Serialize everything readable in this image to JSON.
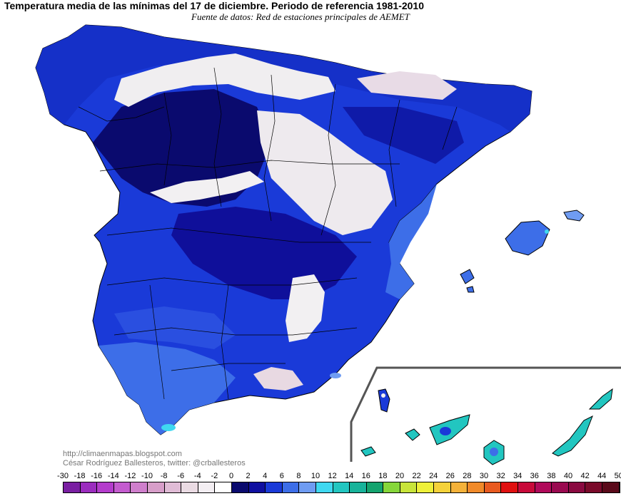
{
  "title": "Temperatura media de las mínimas del 17 de diciembre. Periodo de referencia 1981-2010",
  "subtitle": "Fuente de datos: Red de estaciones principales de AEMET",
  "credits": {
    "blog": "http://climaenmapas.blogspot.com",
    "author": "César Rodríguez Ballesteros, twitter: @crballesteros"
  },
  "legend": {
    "labels": [
      "-30",
      "-18",
      "-16",
      "-14",
      "-12",
      "-10",
      "-8",
      "-6",
      "-4",
      "-2",
      "0",
      "2",
      "4",
      "6",
      "8",
      "10",
      "12",
      "14",
      "16",
      "18",
      "20",
      "22",
      "24",
      "26",
      "28",
      "30",
      "32",
      "34",
      "36",
      "38",
      "40",
      "42",
      "44",
      "50"
    ],
    "colors": [
      "#7a1fa2",
      "#9b2dbe",
      "#b43ccc",
      "#c45ccf",
      "#cf7fcc",
      "#d79ec9",
      "#e0bcd6",
      "#eadbe3",
      "#f3eef2",
      "#ffffff",
      "#0a0a6e",
      "#0f0fa0",
      "#1a3ad8",
      "#3d6ee8",
      "#6f9cf2",
      "#3fd8f0",
      "#22c6c0",
      "#18b39a",
      "#14a36e",
      "#86d63a",
      "#c8e43a",
      "#eef03a",
      "#f5d23a",
      "#f4b23a",
      "#f08a2a",
      "#e85a20",
      "#e01010",
      "#c80a3a",
      "#b00a5a",
      "#9a0a50",
      "#8a0a40",
      "#7a0a2a",
      "#5a0a1a"
    ]
  },
  "map_colors": {
    "sea": "#ffffff",
    "cold_interior": "#f0eef0",
    "very_dark": "#0a0a6e",
    "dark": "#0f1aa8",
    "mid": "#1a3ad8",
    "light": "#3d6ee8",
    "pale": "#6f9cf2",
    "cyan": "#3fd8f0",
    "teal": "#22c6c0",
    "border": "#000000"
  }
}
